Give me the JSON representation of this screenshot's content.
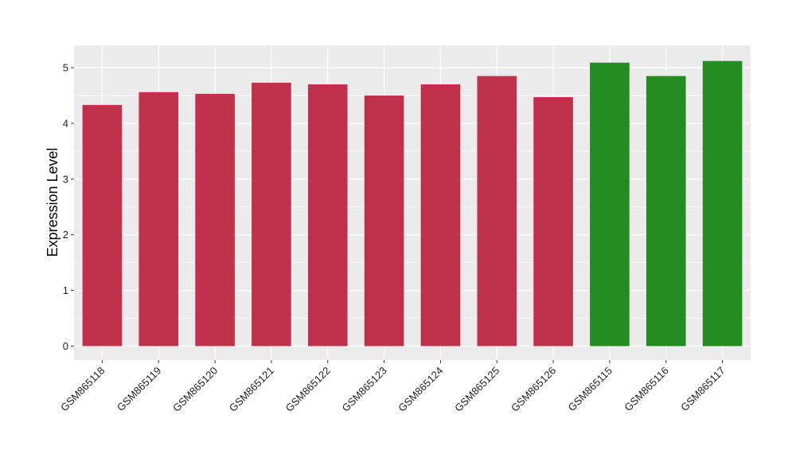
{
  "chart_data": {
    "type": "bar",
    "title": "",
    "xlabel": "",
    "ylabel": "Expression Level",
    "ylim": [
      -0.25,
      5.4
    ],
    "yticks": [
      0,
      1,
      2,
      3,
      4,
      5
    ],
    "categories": [
      "GSM865118",
      "GSM865119",
      "GSM865120",
      "GSM865121",
      "GSM865122",
      "GSM865123",
      "GSM865124",
      "GSM865125",
      "GSM865126",
      "GSM865115",
      "GSM865116",
      "GSM865117"
    ],
    "values": [
      4.33,
      4.56,
      4.53,
      4.73,
      4.7,
      4.5,
      4.7,
      4.85,
      4.47,
      5.09,
      4.85,
      5.12
    ],
    "bar_colors": [
      "#C0304A",
      "#C0304A",
      "#C0304A",
      "#C0304A",
      "#C0304A",
      "#C0304A",
      "#C0304A",
      "#C0304A",
      "#C0304A",
      "#228B22",
      "#228B22",
      "#228B22"
    ],
    "grid": true,
    "legend": "none",
    "panel_background": "#EBEBEB",
    "grid_color": "#FFFFFF"
  }
}
